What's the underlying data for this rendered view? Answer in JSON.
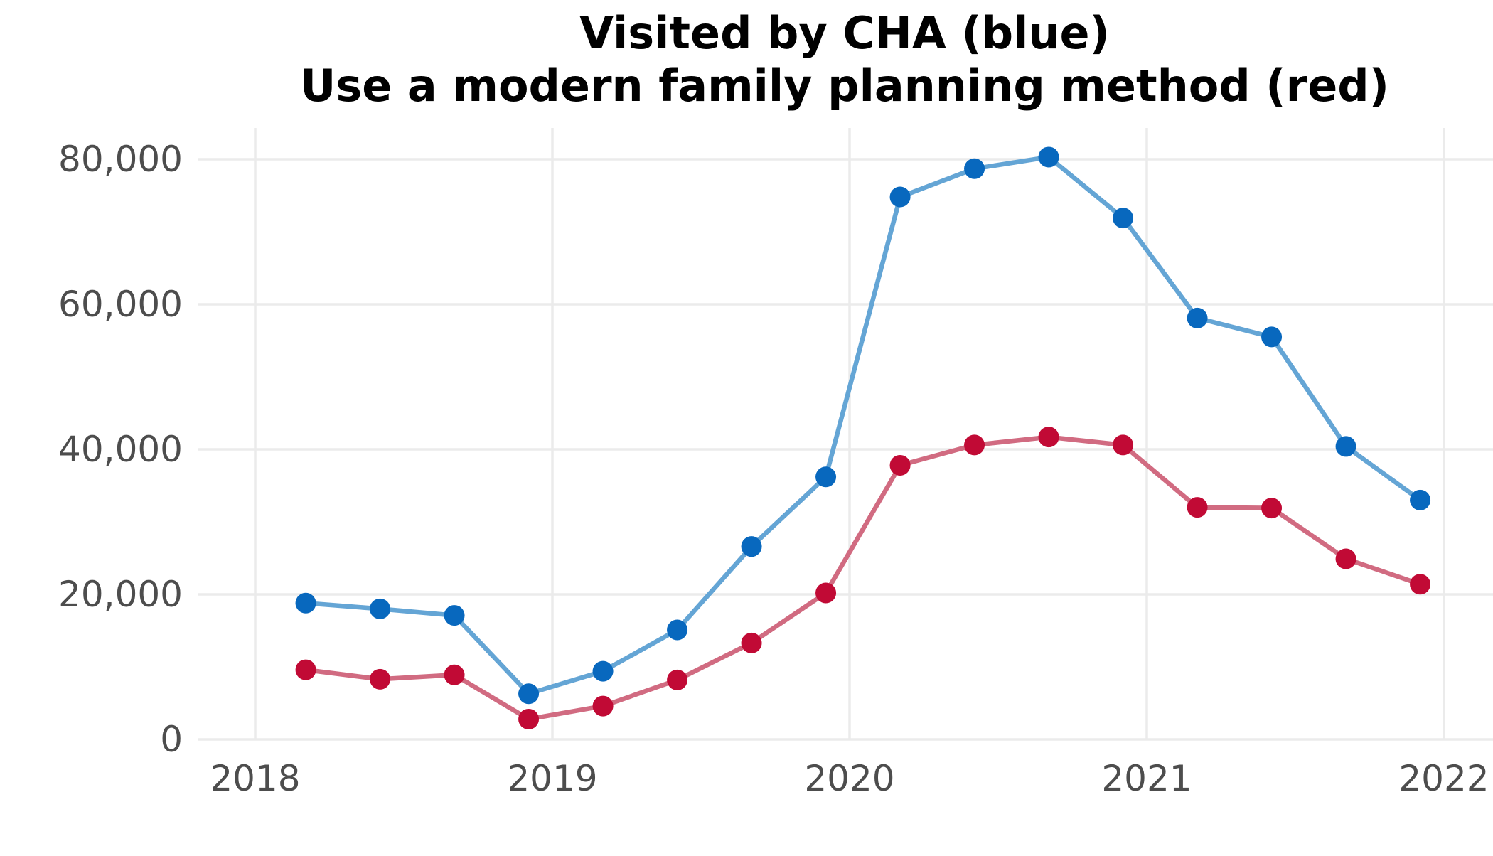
{
  "chart_data": {
    "type": "line",
    "title": "Visited by CHA (blue)\nUse a modern family planning method (red)",
    "title_lines": [
      "Visited by CHA (blue)",
      "Use a modern family planning method (red)"
    ],
    "xlabel": "",
    "ylabel": "",
    "xlim": [
      2017.8,
      2022.2
    ],
    "ylim": [
      0,
      80000
    ],
    "x_ticks": [
      2018,
      2019,
      2020,
      2021,
      2022
    ],
    "x_tick_labels": [
      "2018",
      "2019",
      "2020",
      "2021",
      "2022"
    ],
    "y_ticks": [
      0,
      20000,
      40000,
      60000,
      80000
    ],
    "y_tick_labels": [
      "0",
      "20,000",
      "40,000",
      "60,000",
      "80,000"
    ],
    "grid": true,
    "legend": "none",
    "x": [
      2018.17,
      2018.42,
      2018.67,
      2018.92,
      2019.17,
      2019.42,
      2019.67,
      2019.92,
      2020.17,
      2020.42,
      2020.67,
      2020.92,
      2021.17,
      2021.42,
      2021.67,
      2021.92
    ],
    "series": [
      {
        "color": "#0868be",
        "line_color": "#64a5d5",
        "values": [
          18800,
          18000,
          17100,
          6300,
          9400,
          15100,
          26600,
          36200,
          74800,
          78700,
          80300,
          71900,
          58100,
          55500,
          40400,
          33000
        ]
      },
      {
        "color": "#c10a35",
        "line_color": "#d16b81",
        "values": [
          9600,
          8300,
          8900,
          2800,
          4600,
          8200,
          13300,
          20200,
          37800,
          40600,
          41700,
          40600,
          32000,
          31900,
          24900,
          21400
        ]
      }
    ]
  }
}
